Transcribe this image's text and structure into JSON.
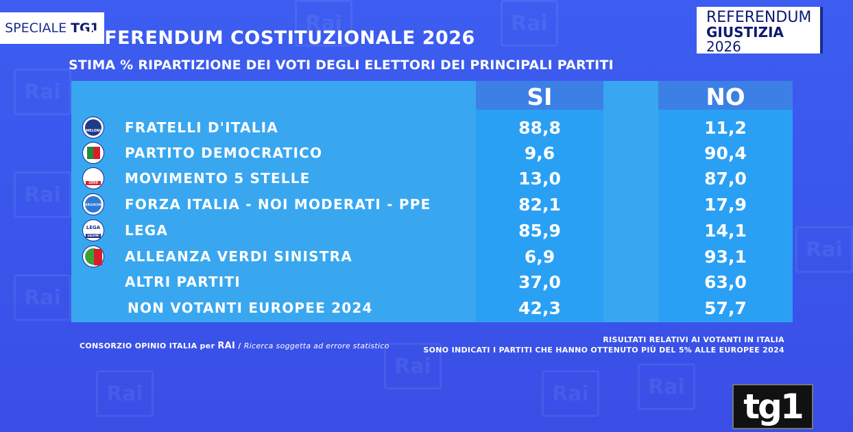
{
  "badge": {
    "prefix": "SPECIALE",
    "brand": "TG1"
  },
  "ref_box": {
    "line1": "REFERENDUM",
    "line2a": "GIUSTIZIA",
    "line2b": "2026"
  },
  "title": "REFERENDUM COSTITUZIONALE 2026",
  "subtitle": "STIMA % RIPARTIZIONE DEI VOTI DEGLI ELETTORI DEI PRINCIPALI PARTITI",
  "headers": {
    "si": "SI",
    "no": "NO"
  },
  "rows": [
    {
      "party": "FRATELLI D'ITALIA",
      "si": "88,8",
      "no": "11,2",
      "logo": "fdi-logo"
    },
    {
      "party": "PARTITO DEMOCRATICO",
      "si": "9,6",
      "no": "90,4",
      "logo": "pd-logo"
    },
    {
      "party": "MOVIMENTO 5 STELLE",
      "si": "13,0",
      "no": "87,0",
      "logo": "m5s-logo"
    },
    {
      "party": "FORZA ITALIA - NOI MODERATI - PPE",
      "si": "82,1",
      "no": "17,9",
      "logo": "fi-logo"
    },
    {
      "party": "LEGA",
      "si": "85,9",
      "no": "14,1",
      "logo": "lega-logo"
    },
    {
      "party": "ALLEANZA VERDI SINISTRA",
      "si": "6,9",
      "no": "93,1",
      "logo": "avs-logo"
    },
    {
      "party": "ALTRI PARTITI",
      "si": "37,0",
      "no": "63,0",
      "logo": ""
    },
    {
      "party": "NON VOTANTI EUROPEE 2024",
      "si": "42,3",
      "no": "57,7",
      "logo": ""
    }
  ],
  "logo_text": {
    "fdi": "MELONI",
    "m5s": "2050",
    "fi": "BERLUSCONI",
    "lega": "LEGA",
    "lega_sub": "SALVINI"
  },
  "footer_left": {
    "part1": "CONSORZIO OPINIO ITALIA per ",
    "rai": "RAI",
    "part2": " / ",
    "note": "Ricerca soggetta ad errore statistico"
  },
  "footer_right": {
    "line1": "RISULTATI RELATIVI AI VOTANTI IN ITALIA",
    "line2": "SONO INDICATI I PARTITI CHE HANNO OTTENUTO PIÙ DEL 5% ALLE EUROPEE 2024"
  },
  "watermark_text": "Rai",
  "tg1_logo": "tg1",
  "colors": {
    "background": "#3a57ec",
    "panel": "#38a7f0",
    "value_column": "#2aa0f5",
    "header_band": "#3c80e6",
    "navy": "#0d1a6e"
  }
}
